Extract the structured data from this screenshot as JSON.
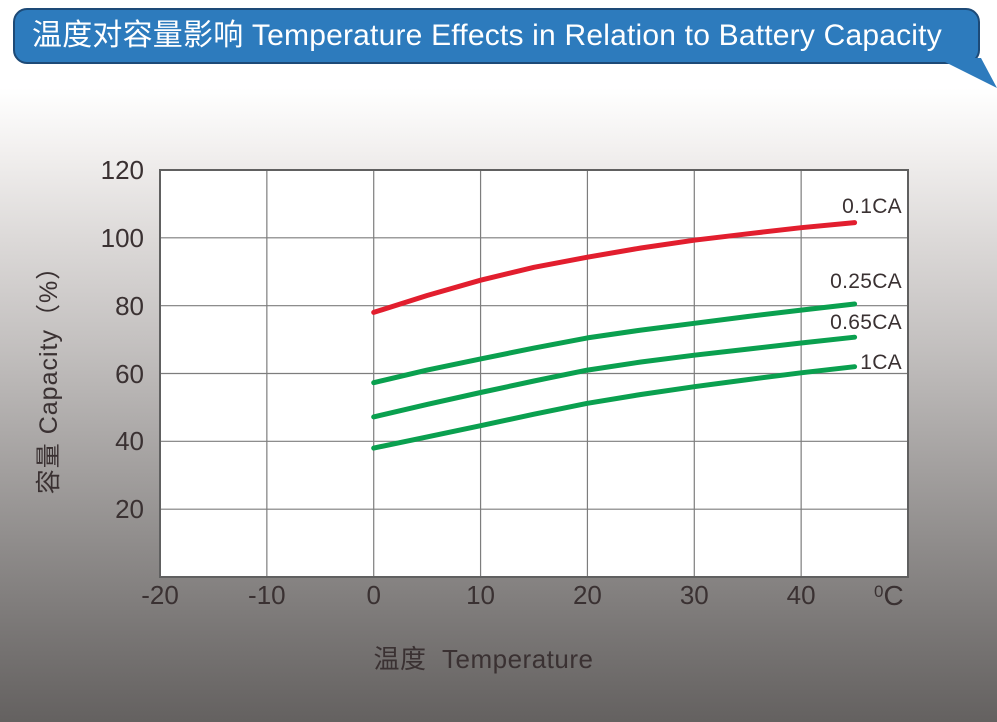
{
  "header": {
    "title": "温度对容量影响 Temperature Effects in Relation to Battery Capacity",
    "bg_color": "#2d7bbd",
    "border_color": "#1d4a77",
    "text_color": "#ffffff"
  },
  "chart_data": {
    "type": "line",
    "title": "温度对容量影响 Temperature Effects in Relation to Battery Capacity",
    "xlabel": "温度  Temperature",
    "ylabel": "容量 Capacity（%）",
    "x_unit": {
      "sup": "0",
      "base": "C"
    },
    "xlim": [
      -20,
      50
    ],
    "ylim": [
      0,
      120
    ],
    "x_ticks": [
      -20,
      -10,
      0,
      10,
      20,
      30,
      40
    ],
    "y_ticks": [
      20,
      40,
      60,
      80,
      100,
      120
    ],
    "grid": true,
    "legend_position": "right-of-curves",
    "plot_bg": "#ffffff",
    "grid_color": "#7d7d7d",
    "border_color": "#606060",
    "text_color": "#3a3132",
    "series": [
      {
        "name": "0.1CA",
        "color": "#e21e2e",
        "label_at": 109,
        "points": [
          [
            0,
            78
          ],
          [
            5,
            83
          ],
          [
            10,
            87.5
          ],
          [
            15,
            91.3
          ],
          [
            20,
            94.3
          ],
          [
            25,
            97
          ],
          [
            30,
            99.3
          ],
          [
            35,
            101.2
          ],
          [
            40,
            103
          ],
          [
            45,
            104.5
          ]
        ]
      },
      {
        "name": "0.25CA",
        "color": "#0aa04f",
        "label_at": 87,
        "points": [
          [
            0,
            57.3
          ],
          [
            5,
            61
          ],
          [
            10,
            64.3
          ],
          [
            15,
            67.5
          ],
          [
            20,
            70.5
          ],
          [
            25,
            72.8
          ],
          [
            30,
            74.8
          ],
          [
            35,
            76.8
          ],
          [
            40,
            78.7
          ],
          [
            45,
            80.5
          ]
        ]
      },
      {
        "name": "0.65CA",
        "color": "#0aa04f",
        "label_at": 75,
        "points": [
          [
            0,
            47.2
          ],
          [
            5,
            50.9
          ],
          [
            10,
            54.4
          ],
          [
            15,
            57.8
          ],
          [
            20,
            61
          ],
          [
            25,
            63.4
          ],
          [
            30,
            65.4
          ],
          [
            35,
            67.2
          ],
          [
            40,
            69
          ],
          [
            45,
            70.7
          ]
        ]
      },
      {
        "name": "1CA",
        "color": "#0aa04f",
        "label_at": 63,
        "points": [
          [
            0,
            38
          ],
          [
            5,
            41.3
          ],
          [
            10,
            44.6
          ],
          [
            15,
            48
          ],
          [
            20,
            51.2
          ],
          [
            25,
            53.8
          ],
          [
            30,
            56.1
          ],
          [
            35,
            58.2
          ],
          [
            40,
            60.2
          ],
          [
            45,
            62
          ]
        ]
      }
    ]
  }
}
